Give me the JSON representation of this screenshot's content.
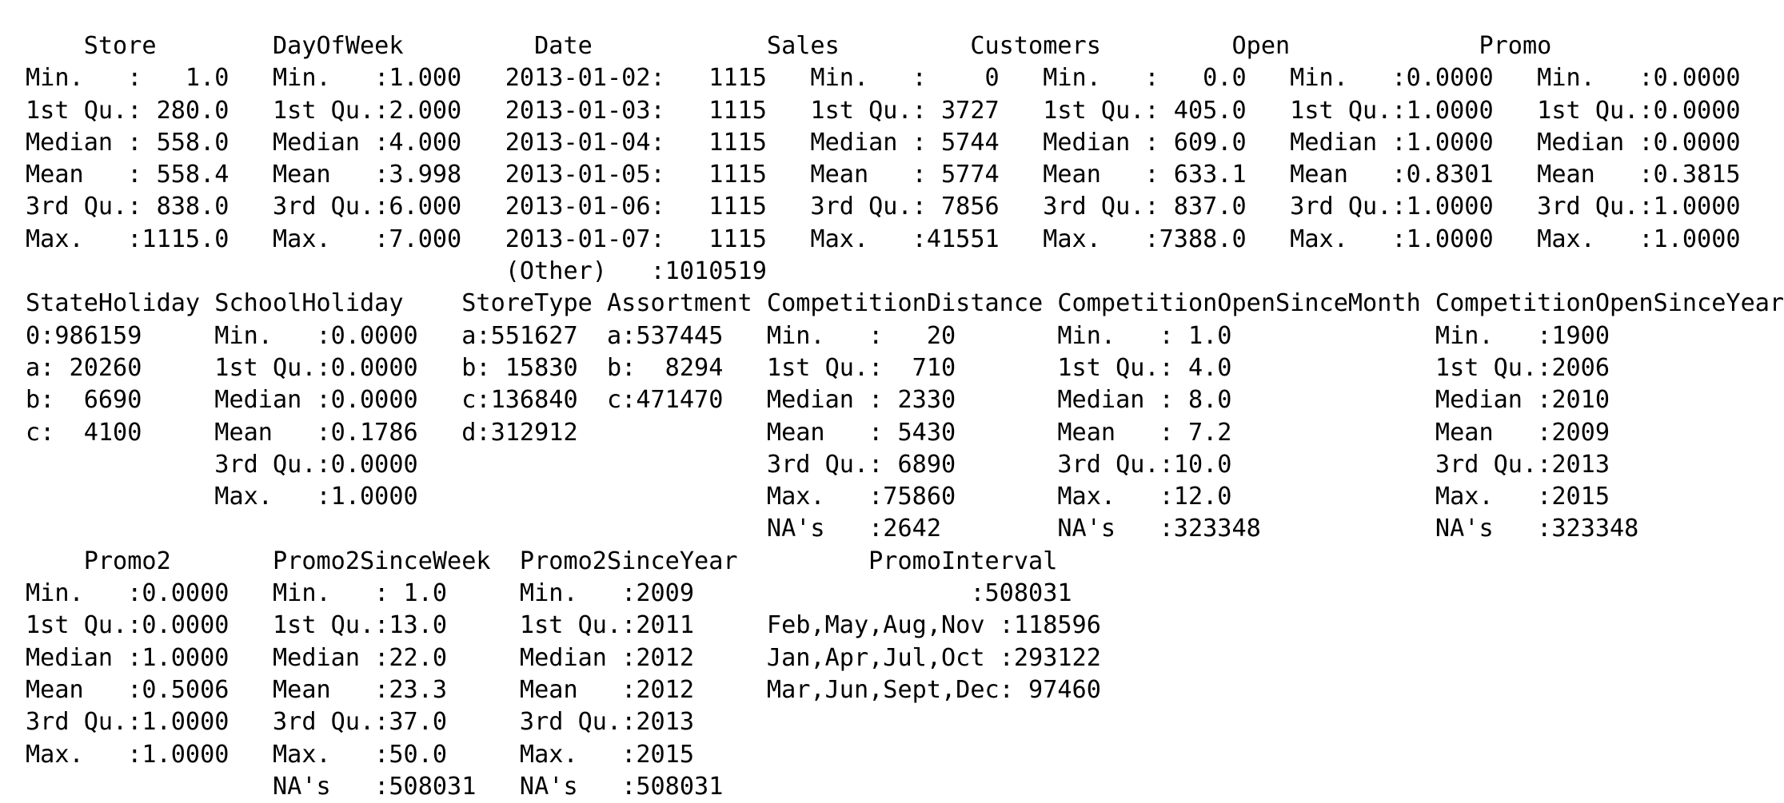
{
  "console": {
    "lines": [
      "    Store        DayOfWeek         Date            Sales         Customers         Open             Promo       ",
      "Min.   :   1.0   Min.   :1.000   2013-01-02:   1115   Min.   :    0   Min.   :   0.0   Min.   :0.0000   Min.   :0.0000  ",
      "1st Qu.: 280.0   1st Qu.:2.000   2013-01-03:   1115   1st Qu.: 3727   1st Qu.: 405.0   1st Qu.:1.0000   1st Qu.:0.0000  ",
      "Median : 558.0   Median :4.000   2013-01-04:   1115   Median : 5744   Median : 609.0   Median :1.0000   Median :0.0000  ",
      "Mean   : 558.4   Mean   :3.998   2013-01-05:   1115   Mean   : 5774   Mean   : 633.1   Mean   :0.8301   Mean   :0.3815  ",
      "3rd Qu.: 838.0   3rd Qu.:6.000   2013-01-06:   1115   3rd Qu.: 7856   3rd Qu.: 837.0   3rd Qu.:1.0000   3rd Qu.:1.0000  ",
      "Max.   :1115.0   Max.   :7.000   2013-01-07:   1115   Max.   :41551   Max.   :7388.0   Max.   :1.0000   Max.   :1.0000  ",
      "                                 (Other)   :1010519                                                                  ",
      "StateHoliday SchoolHoliday    StoreType Assortment CompetitionDistance CompetitionOpenSinceMonth CompetitionOpenSinceYear",
      "0:986159     Min.   :0.0000   a:551627  a:537445   Min.   :   20       Min.   : 1.0              Min.   :1900            ",
      "a: 20260     1st Qu.:0.0000   b: 15830  b:  8294   1st Qu.:  710       1st Qu.: 4.0              1st Qu.:2006            ",
      "b:  6690     Median :0.0000   c:136840  c:471470   Median : 2330       Median : 8.0              Median :2010            ",
      "c:  4100     Mean   :0.1786   d:312912             Mean   : 5430       Mean   : 7.2              Mean   :2009            ",
      "             3rd Qu.:0.0000                        3rd Qu.: 6890       3rd Qu.:10.0              3rd Qu.:2013            ",
      "             Max.   :1.0000                        Max.   :75860       Max.   :12.0              Max.   :2015            ",
      "                                                   NA's   :2642        NA's   :323348            NA's   :323348          ",
      "    Promo2       Promo2SinceWeek  Promo2SinceYear         PromoInterval   ",
      "Min.   :0.0000   Min.   : 1.0     Min.   :2009                   :508031  ",
      "1st Qu.:0.0000   1st Qu.:13.0     1st Qu.:2011     Feb,May,Aug,Nov :118596  ",
      "Median :1.0000   Median :22.0     Median :2012     Jan,Apr,Jul,Oct :293122  ",
      "Mean   :0.5006   Mean   :23.3     Mean   :2012     Mar,Jun,Sept,Dec: 97460  ",
      "3rd Qu.:1.0000   3rd Qu.:37.0     3rd Qu.:2013                              ",
      "Max.   :1.0000   Max.   :50.0     Max.   :2015                              ",
      "                 NA's   :508031   NA's   :508031                            "
    ]
  }
}
